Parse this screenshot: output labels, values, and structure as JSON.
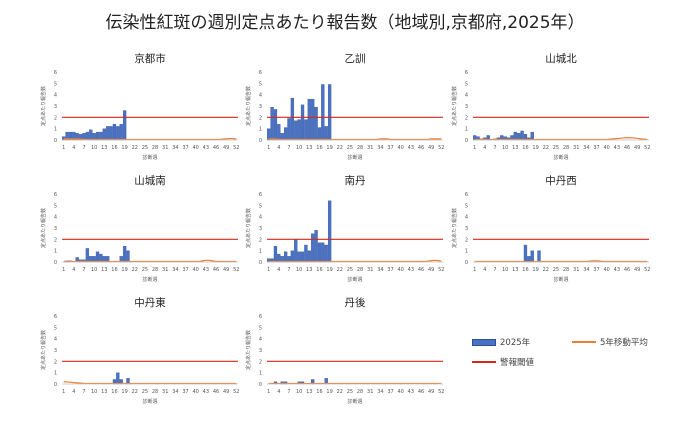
{
  "title": "伝染性紅斑の週別定点あたり報告数（地域別,京都府,2025年）",
  "colors": {
    "bar": "#4a72c4",
    "bar_stroke": "#2f4f8f",
    "avg": "#ed7d31",
    "threshold": "#d9261c",
    "axis": "#bfbfbf"
  },
  "legend": {
    "bar": "2025年",
    "avg": "5年移動平均",
    "threshold": "警報閾値"
  },
  "chart_data": [
    {
      "type": "bar",
      "title": "京都市",
      "xlabel": "診断週",
      "ylabel": "定点あたり報告数",
      "ylim": [
        0,
        6
      ],
      "yticks": [
        0,
        1,
        2,
        3,
        4,
        5,
        6
      ],
      "xticks": [
        1,
        4,
        7,
        10,
        13,
        16,
        19,
        22,
        25,
        28,
        31,
        34,
        37,
        40,
        43,
        46,
        49,
        52
      ],
      "threshold": 2,
      "series": [
        {
          "name": "2025年",
          "x": [
            1,
            2,
            3,
            4,
            5,
            6,
            7,
            8,
            9,
            10,
            11,
            12,
            13,
            14,
            15,
            16,
            17,
            18,
            19,
            20
          ],
          "values": [
            0.3,
            0.7,
            0.7,
            0.7,
            0.6,
            0.5,
            0.6,
            0.7,
            0.9,
            0.6,
            0.7,
            0.7,
            1.0,
            1.2,
            1.2,
            1.4,
            1.2,
            1.4,
            2.6,
            0
          ]
        }
      ],
      "avg": [
        0.1,
        0.1,
        0.1,
        0.1,
        0.1,
        0.1,
        0.05,
        0.05,
        0.05,
        0.05,
        0.05,
        0.05,
        0.05,
        0.05,
        0.05,
        0.05,
        0.05,
        0.05,
        0.05,
        0.05,
        0.05,
        0.05,
        0.05,
        0.05,
        0.05,
        0.05,
        0.05,
        0.05,
        0.05,
        0.05,
        0.05,
        0.05,
        0.05,
        0.05,
        0.05,
        0.05,
        0.05,
        0.05,
        0.05,
        0.05,
        0.05,
        0.05,
        0.05,
        0.05,
        0.05,
        0.05,
        0.05,
        0.08,
        0.1,
        0.12,
        0.12,
        0.1
      ]
    },
    {
      "type": "bar",
      "title": "乙訓",
      "xlabel": "診断週",
      "ylabel": "定点あたり報告数",
      "ylim": [
        0,
        6
      ],
      "yticks": [
        0,
        1,
        2,
        3,
        4,
        5,
        6
      ],
      "xticks": [
        1,
        4,
        7,
        10,
        13,
        16,
        19,
        22,
        25,
        28,
        31,
        34,
        37,
        40,
        43,
        46,
        49,
        52
      ],
      "threshold": 2,
      "series": [
        {
          "name": "2025年",
          "x": [
            1,
            2,
            3,
            4,
            5,
            6,
            7,
            8,
            9,
            10,
            11,
            12,
            13,
            14,
            15,
            16,
            17,
            18,
            19,
            20
          ],
          "values": [
            1.0,
            2.9,
            2.7,
            1.4,
            0.6,
            1.1,
            1.9,
            3.7,
            1.7,
            1.8,
            3.1,
            1.8,
            3.6,
            3.6,
            2.9,
            1.1,
            4.9,
            1.2,
            4.9,
            0
          ]
        }
      ],
      "avg": [
        0.1,
        0.1,
        0.1,
        0.05,
        0.05,
        0.05,
        0.05,
        0.05,
        0.05,
        0.05,
        0.05,
        0.05,
        0.05,
        0.05,
        0.05,
        0.05,
        0.05,
        0.05,
        0.05,
        0.05,
        0.05,
        0.05,
        0.05,
        0.05,
        0.05,
        0.05,
        0.05,
        0.05,
        0.05,
        0.05,
        0.05,
        0.05,
        0.05,
        0.1,
        0.1,
        0.1,
        0.05,
        0.05,
        0.05,
        0.05,
        0.05,
        0.05,
        0.05,
        0.05,
        0.05,
        0.05,
        0.05,
        0.05,
        0.1,
        0.1,
        0.1,
        0.1
      ]
    },
    {
      "type": "bar",
      "title": "山城北",
      "xlabel": "診断週",
      "ylabel": "定点あたり報告数",
      "ylim": [
        0,
        6
      ],
      "yticks": [
        0,
        1,
        2,
        3,
        4,
        5,
        6
      ],
      "xticks": [
        1,
        4,
        7,
        10,
        13,
        16,
        19,
        22,
        25,
        28,
        31,
        34,
        37,
        40,
        43,
        46,
        49,
        52
      ],
      "threshold": 2,
      "series": [
        {
          "name": "2025年",
          "x": [
            1,
            2,
            3,
            4,
            5,
            6,
            7,
            8,
            9,
            10,
            11,
            12,
            13,
            14,
            15,
            16,
            17,
            18,
            19,
            20
          ],
          "values": [
            0.4,
            0.3,
            0.1,
            0.2,
            0.4,
            0,
            0.1,
            0.2,
            0.4,
            0.3,
            0.2,
            0.4,
            0.7,
            0.6,
            0.8,
            0.5,
            0.2,
            0.7,
            0,
            0
          ]
        }
      ],
      "avg": [
        0.05,
        0.05,
        0.05,
        0.05,
        0.05,
        0.05,
        0.05,
        0.05,
        0.05,
        0.05,
        0.05,
        0.05,
        0.05,
        0.05,
        0.05,
        0.05,
        0.05,
        0.05,
        0.05,
        0.05,
        0.05,
        0.05,
        0.05,
        0.05,
        0.05,
        0.05,
        0.05,
        0.05,
        0.05,
        0.05,
        0.05,
        0.05,
        0.05,
        0.05,
        0.05,
        0.05,
        0.05,
        0.05,
        0.05,
        0.05,
        0.08,
        0.1,
        0.12,
        0.15,
        0.18,
        0.2,
        0.2,
        0.18,
        0.15,
        0.1,
        0.08,
        0.05
      ]
    },
    {
      "type": "bar",
      "title": "山城南",
      "xlabel": "診断週",
      "ylabel": "定点あたり報告数",
      "ylim": [
        0,
        6
      ],
      "yticks": [
        0,
        1,
        2,
        3,
        4,
        5,
        6
      ],
      "xticks": [
        1,
        4,
        7,
        10,
        13,
        16,
        19,
        22,
        25,
        28,
        31,
        34,
        37,
        40,
        43,
        46,
        49,
        52
      ],
      "threshold": 2,
      "series": [
        {
          "name": "2025年",
          "x": [
            1,
            2,
            3,
            4,
            5,
            6,
            7,
            8,
            9,
            10,
            11,
            12,
            13,
            14,
            15,
            16,
            17,
            18,
            19,
            20
          ],
          "values": [
            0,
            0.1,
            0.1,
            0,
            0.4,
            0.2,
            0.2,
            1.2,
            0.5,
            0.5,
            0.9,
            0.7,
            0.5,
            0.5,
            0,
            0,
            0,
            0.5,
            1.4,
            1.0
          ]
        }
      ],
      "avg": [
        0.05,
        0.05,
        0.05,
        0.05,
        0.05,
        0.05,
        0.05,
        0.05,
        0.05,
        0.05,
        0.05,
        0.05,
        0.05,
        0.05,
        0.05,
        0.05,
        0.05,
        0.05,
        0.05,
        0.05,
        0.05,
        0.05,
        0.05,
        0.05,
        0.05,
        0.05,
        0.05,
        0.05,
        0.05,
        0.05,
        0.05,
        0.05,
        0.05,
        0.05,
        0.05,
        0.05,
        0.05,
        0.05,
        0.05,
        0.05,
        0.05,
        0.1,
        0.15,
        0.15,
        0.1,
        0.05,
        0.05,
        0.05,
        0.05,
        0.05,
        0.05,
        0.05
      ]
    },
    {
      "type": "bar",
      "title": "南丹",
      "xlabel": "診断週",
      "ylabel": "定点あたり報告数",
      "ylim": [
        0,
        6
      ],
      "yticks": [
        0,
        1,
        2,
        3,
        4,
        5,
        6
      ],
      "xticks": [
        1,
        4,
        7,
        10,
        13,
        16,
        19,
        22,
        25,
        28,
        31,
        34,
        37,
        40,
        43,
        46,
        49,
        52
      ],
      "threshold": 2,
      "series": [
        {
          "name": "2025年",
          "x": [
            1,
            2,
            3,
            4,
            5,
            6,
            7,
            8,
            9,
            10,
            11,
            12,
            13,
            14,
            15,
            16,
            17,
            18,
            19,
            20
          ],
          "values": [
            0.3,
            0.3,
            1.4,
            0.7,
            0.5,
            0.9,
            0.5,
            1.0,
            2.0,
            0.9,
            0.9,
            1.5,
            1.0,
            2.5,
            2.8,
            1.7,
            1.7,
            1.5,
            5.4,
            0
          ]
        }
      ],
      "avg": [
        0.05,
        0.05,
        0.05,
        0.05,
        0.05,
        0.05,
        0.05,
        0.05,
        0.05,
        0.05,
        0.05,
        0.05,
        0.05,
        0.05,
        0.05,
        0.05,
        0.05,
        0.05,
        0.05,
        0.05,
        0.05,
        0.05,
        0.05,
        0.05,
        0.05,
        0.05,
        0.05,
        0.05,
        0.05,
        0.05,
        0.05,
        0.05,
        0.05,
        0.05,
        0.05,
        0.05,
        0.05,
        0.05,
        0.05,
        0.05,
        0.05,
        0.05,
        0.05,
        0.05,
        0.05,
        0.05,
        0.05,
        0.08,
        0.12,
        0.15,
        0.12,
        0.08
      ]
    },
    {
      "type": "bar",
      "title": "中丹西",
      "xlabel": "診断週",
      "ylabel": "定点あたり報告数",
      "ylim": [
        0,
        6
      ],
      "yticks": [
        0,
        1,
        2,
        3,
        4,
        5,
        6
      ],
      "xticks": [
        1,
        4,
        7,
        10,
        13,
        16,
        19,
        22,
        25,
        28,
        31,
        34,
        37,
        40,
        43,
        46,
        49,
        52
      ],
      "threshold": 2,
      "series": [
        {
          "name": "2025年",
          "x": [
            1,
            2,
            3,
            4,
            5,
            6,
            7,
            8,
            9,
            10,
            11,
            12,
            13,
            14,
            15,
            16,
            17,
            18,
            19,
            20
          ],
          "values": [
            0,
            0,
            0,
            0,
            0,
            0,
            0,
            0,
            0,
            0,
            0,
            0,
            0,
            0,
            0,
            1.5,
            0.5,
            1.0,
            0,
            1.0
          ]
        }
      ],
      "avg": [
        0.05,
        0.05,
        0.05,
        0.05,
        0.05,
        0.05,
        0.05,
        0.05,
        0.05,
        0.05,
        0.05,
        0.05,
        0.05,
        0.05,
        0.05,
        0.05,
        0.05,
        0.05,
        0.05,
        0.05,
        0.05,
        0.05,
        0.05,
        0.05,
        0.05,
        0.05,
        0.05,
        0.05,
        0.05,
        0.05,
        0.05,
        0.05,
        0.05,
        0.05,
        0.08,
        0.1,
        0.1,
        0.08,
        0.05,
        0.05,
        0.05,
        0.05,
        0.05,
        0.05,
        0.05,
        0.05,
        0.05,
        0.05,
        0.05,
        0.05,
        0.05,
        0.05
      ]
    },
    {
      "type": "bar",
      "title": "中丹東",
      "xlabel": "診断週",
      "ylabel": "定点あたり報告数",
      "ylim": [
        0,
        6
      ],
      "yticks": [
        0,
        1,
        2,
        3,
        4,
        5,
        6
      ],
      "xticks": [
        1,
        4,
        7,
        10,
        13,
        16,
        19,
        22,
        25,
        28,
        31,
        34,
        37,
        40,
        43,
        46,
        49,
        52
      ],
      "threshold": 2,
      "series": [
        {
          "name": "2025年",
          "x": [
            1,
            2,
            3,
            4,
            5,
            6,
            7,
            8,
            9,
            10,
            11,
            12,
            13,
            14,
            15,
            16,
            17,
            18,
            19,
            20
          ],
          "values": [
            0,
            0,
            0,
            0,
            0,
            0,
            0,
            0,
            0,
            0,
            0,
            0,
            0,
            0,
            0,
            0.4,
            1.0,
            0.4,
            0,
            0.5
          ]
        }
      ],
      "avg": [
        0.2,
        0.18,
        0.15,
        0.12,
        0.1,
        0.08,
        0.06,
        0.05,
        0.05,
        0.05,
        0.05,
        0.05,
        0.05,
        0.05,
        0.05,
        0.05,
        0.05,
        0.05,
        0.05,
        0.05,
        0.05,
        0.05,
        0.05,
        0.05,
        0.05,
        0.05,
        0.05,
        0.05,
        0.05,
        0.05,
        0.05,
        0.05,
        0.05,
        0.05,
        0.05,
        0.05,
        0.05,
        0.05,
        0.05,
        0.05,
        0.05,
        0.05,
        0.05,
        0.05,
        0.05,
        0.05,
        0.05,
        0.05,
        0.05,
        0.05,
        0.05,
        0.05
      ]
    },
    {
      "type": "bar",
      "title": "丹後",
      "xlabel": "診断週",
      "ylabel": "定点あたり報告数",
      "ylim": [
        0,
        6
      ],
      "yticks": [
        0,
        1,
        2,
        3,
        4,
        5,
        6
      ],
      "xticks": [
        1,
        4,
        7,
        10,
        13,
        16,
        19,
        22,
        25,
        28,
        31,
        34,
        37,
        40,
        43,
        46,
        49,
        52
      ],
      "threshold": 2,
      "series": [
        {
          "name": "2025年",
          "x": [
            1,
            2,
            3,
            4,
            5,
            6,
            7,
            8,
            9,
            10,
            11,
            12,
            13,
            14,
            15,
            16,
            17,
            18,
            19,
            20
          ],
          "values": [
            0,
            0,
            0.2,
            0,
            0.2,
            0.2,
            0,
            0,
            0,
            0.2,
            0.2,
            0,
            0,
            0.4,
            0,
            0,
            0,
            0.5,
            0,
            0
          ]
        }
      ],
      "avg": [
        0.05,
        0.05,
        0.05,
        0.05,
        0.05,
        0.05,
        0.05,
        0.05,
        0.05,
        0.05,
        0.05,
        0.05,
        0.05,
        0.05,
        0.05,
        0.05,
        0.05,
        0.05,
        0.05,
        0.05,
        0.05,
        0.05,
        0.05,
        0.05,
        0.05,
        0.05,
        0.05,
        0.05,
        0.05,
        0.05,
        0.05,
        0.05,
        0.05,
        0.05,
        0.05,
        0.05,
        0.05,
        0.05,
        0.05,
        0.05,
        0.05,
        0.05,
        0.05,
        0.05,
        0.05,
        0.05,
        0.05,
        0.05,
        0.05,
        0.05,
        0.05,
        0.05
      ]
    }
  ]
}
